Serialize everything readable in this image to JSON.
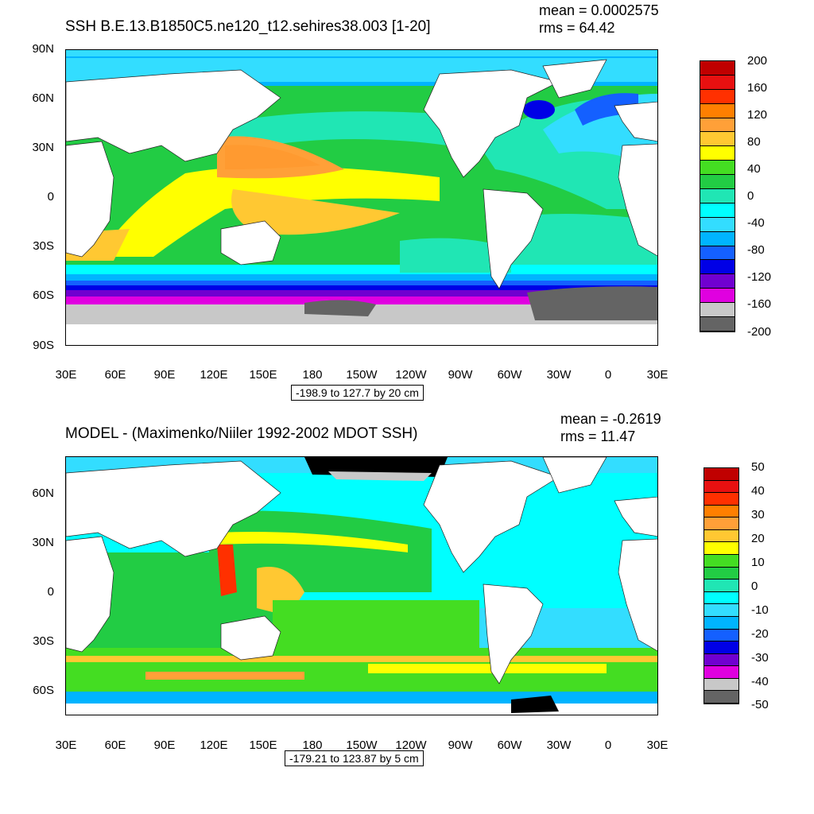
{
  "panels": [
    {
      "title": "SSH B.E.13.B1850C5.ne120_t12.sehires38.003 [1-20]",
      "mean": "mean = 0.0002575",
      "rms": "rms = 64.42",
      "range": "-198.9 to 127.7 by 20 cm",
      "lat_ticks": [
        "90N",
        "60N",
        "30N",
        "0",
        "30S",
        "60S",
        "90S"
      ],
      "lon_ticks": [
        "30E",
        "60E",
        "90E",
        "120E",
        "150E",
        "180",
        "150W",
        "120W",
        "90W",
        "60W",
        "30W",
        "0",
        "30E"
      ],
      "colorbar_labels": [
        "200",
        "160",
        "120",
        "80",
        "40",
        "0",
        "-40",
        "-80",
        "-120",
        "-160",
        "-200"
      ],
      "colors": [
        "#c00000",
        "#e81010",
        "#ff3000",
        "#ff7f00",
        "#ffa038",
        "#ffc832",
        "#ffff00",
        "#44dd22",
        "#22cc44",
        "#20e6b4",
        "#00ffff",
        "#33ddff",
        "#00b4ff",
        "#1460ff",
        "#0000e6",
        "#7000d0",
        "#e000e0",
        "#c8c8c8",
        "#646464"
      ]
    },
    {
      "title": "MODEL - (Maximenko/Niiler 1992-2002 MDOT SSH)",
      "mean": "mean = -0.2619",
      "rms": "rms = 11.47",
      "range": "-179.21 to 123.87 by 5 cm",
      "lat_ticks": [
        "60N",
        "30N",
        "0",
        "30S",
        "60S"
      ],
      "lon_ticks": [
        "30E",
        "60E",
        "90E",
        "120E",
        "150E",
        "180",
        "150W",
        "120W",
        "90W",
        "60W",
        "30W",
        "0",
        "30E"
      ],
      "colorbar_labels": [
        "50",
        "40",
        "30",
        "20",
        "10",
        "0",
        "-10",
        "-20",
        "-30",
        "-40",
        "-50"
      ],
      "colors": [
        "#c00000",
        "#e81010",
        "#ff3000",
        "#ff7f00",
        "#ffa038",
        "#ffc832",
        "#ffff00",
        "#44dd22",
        "#22cc44",
        "#20e6b4",
        "#00ffff",
        "#33ddff",
        "#00b4ff",
        "#1460ff",
        "#0000e6",
        "#7000d0",
        "#e000e0",
        "#c8c8c8",
        "#646464"
      ]
    }
  ]
}
